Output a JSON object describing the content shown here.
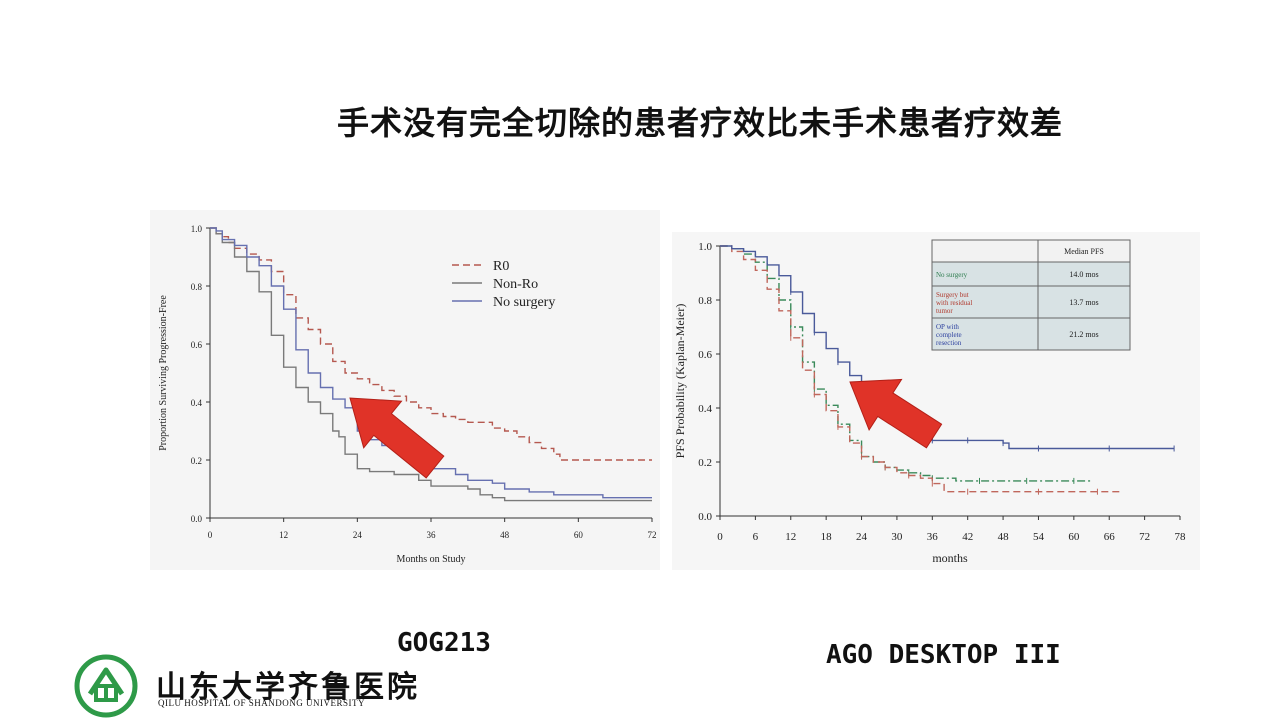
{
  "slide": {
    "title": "手术没有完全切除的患者疗效比未手术患者疗效差",
    "caption_left": "GOG213",
    "caption_right": "AGO DESKTOP III"
  },
  "logo": {
    "name_cn": "山东大学齐鲁医院",
    "name_en": "QILU HOSPITAL OF SHANDONG UNIVERSITY",
    "color": "#2e9a48"
  },
  "chart_data": [
    {
      "type": "line",
      "xlabel": "Months on Study",
      "ylabel": "Proportion Surviving Progression-Free",
      "xlim": [
        0,
        72
      ],
      "ylim": [
        0,
        1.0
      ],
      "xticks": [
        0,
        12,
        24,
        36,
        48,
        60,
        72
      ],
      "yticks": [
        0.0,
        0.2,
        0.4,
        0.6,
        0.8,
        1.0
      ],
      "xtick_labels": [
        "0",
        "12",
        "24",
        "36",
        "48",
        "60",
        "72"
      ],
      "ytick_labels": [
        "0.0",
        "0.2",
        "0.4",
        "0.6",
        "0.8",
        "1.0"
      ],
      "legend_position": "top-right",
      "grid": false,
      "series": [
        {
          "name": "R0",
          "color": "#b5584f",
          "dash": "dashed",
          "x": [
            0,
            1,
            2,
            3,
            4,
            6,
            8,
            10,
            12,
            14,
            16,
            18,
            20,
            22,
            24,
            26,
            28,
            30,
            32,
            34,
            36,
            38,
            40,
            42,
            44,
            46,
            48,
            50,
            52,
            54,
            56,
            57,
            60,
            64,
            68,
            72
          ],
          "y": [
            1.0,
            0.98,
            0.97,
            0.95,
            0.93,
            0.91,
            0.89,
            0.85,
            0.77,
            0.69,
            0.65,
            0.6,
            0.54,
            0.5,
            0.48,
            0.46,
            0.44,
            0.42,
            0.4,
            0.38,
            0.36,
            0.35,
            0.34,
            0.33,
            0.33,
            0.31,
            0.3,
            0.28,
            0.26,
            0.24,
            0.22,
            0.2,
            0.2,
            0.2,
            0.2,
            0.2
          ]
        },
        {
          "name": "Non-Ro",
          "color": "#7a7a7a",
          "dash": "solid",
          "x": [
            0,
            1,
            2,
            4,
            6,
            8,
            10,
            12,
            14,
            16,
            18,
            20,
            21,
            22,
            24,
            26,
            30,
            34,
            36,
            40,
            42,
            44,
            46,
            48,
            52,
            56,
            60,
            64,
            68,
            72
          ],
          "y": [
            1.0,
            0.98,
            0.95,
            0.9,
            0.85,
            0.78,
            0.63,
            0.52,
            0.45,
            0.4,
            0.36,
            0.3,
            0.28,
            0.22,
            0.17,
            0.16,
            0.15,
            0.13,
            0.11,
            0.11,
            0.1,
            0.08,
            0.07,
            0.06,
            0.06,
            0.06,
            0.06,
            0.06,
            0.06,
            0.06
          ]
        },
        {
          "name": "No surgery",
          "color": "#6670b0",
          "dash": "solid",
          "x": [
            0,
            1,
            2,
            4,
            6,
            8,
            10,
            12,
            14,
            16,
            18,
            20,
            22,
            24,
            26,
            28,
            30,
            34,
            36,
            40,
            42,
            46,
            48,
            52,
            56,
            60,
            64,
            68,
            72
          ],
          "y": [
            1.0,
            0.99,
            0.96,
            0.94,
            0.9,
            0.87,
            0.8,
            0.72,
            0.58,
            0.5,
            0.45,
            0.41,
            0.38,
            0.3,
            0.27,
            0.25,
            0.24,
            0.21,
            0.17,
            0.15,
            0.13,
            0.12,
            0.1,
            0.09,
            0.08,
            0.08,
            0.07,
            0.07,
            0.07
          ]
        }
      ]
    },
    {
      "type": "line",
      "xlabel": "months",
      "ylabel": "PFS Probability (Kaplan-Meier)",
      "xlim": [
        0,
        78
      ],
      "ylim": [
        0,
        1.0
      ],
      "xticks": [
        0,
        6,
        12,
        18,
        24,
        30,
        36,
        42,
        48,
        54,
        60,
        66,
        72,
        78
      ],
      "yticks": [
        0.0,
        0.2,
        0.4,
        0.6,
        0.8,
        1.0
      ],
      "xtick_labels": [
        "0",
        "6",
        "12",
        "18",
        "24",
        "30",
        "36",
        "42",
        "48",
        "54",
        "60",
        "66",
        "72",
        "78"
      ],
      "ytick_labels": [
        "0.0",
        "0.2",
        "0.4",
        "0.6",
        "0.8",
        "1.0"
      ],
      "grid": false,
      "table": {
        "header": [
          "",
          "Median PFS"
        ],
        "rows": [
          {
            "label": "No surgery",
            "value": "14.0 mos",
            "color": "#2e7d4f"
          },
          {
            "label": "Surgery but with residual tumor",
            "value": "13.7 mos",
            "color": "#b03a2e"
          },
          {
            "label": "OP with complete resection",
            "value": "21.2 mos",
            "color": "#2b3f9e"
          }
        ]
      },
      "series": [
        {
          "name": "No surgery",
          "color": "#3a8a5a",
          "dash": "dashdot",
          "x": [
            0,
            2,
            4,
            6,
            8,
            10,
            12,
            14,
            16,
            18,
            20,
            22,
            24,
            26,
            28,
            30,
            32,
            34,
            36,
            40,
            44,
            48,
            52,
            56,
            60,
            63
          ],
          "y": [
            1.0,
            0.99,
            0.97,
            0.94,
            0.88,
            0.8,
            0.7,
            0.57,
            0.47,
            0.41,
            0.34,
            0.28,
            0.22,
            0.2,
            0.18,
            0.17,
            0.16,
            0.15,
            0.14,
            0.13,
            0.13,
            0.13,
            0.13,
            0.13,
            0.13,
            0.13
          ]
        },
        {
          "name": "Surgery but with residual tumor",
          "color": "#c0675c",
          "dash": "dashed",
          "x": [
            0,
            2,
            4,
            6,
            8,
            10,
            12,
            14,
            16,
            18,
            20,
            22,
            24,
            26,
            28,
            30,
            32,
            34,
            36,
            38,
            42,
            48,
            54,
            60,
            64,
            68
          ],
          "y": [
            1.0,
            0.98,
            0.95,
            0.91,
            0.84,
            0.76,
            0.66,
            0.54,
            0.45,
            0.39,
            0.33,
            0.27,
            0.22,
            0.2,
            0.18,
            0.16,
            0.15,
            0.14,
            0.12,
            0.09,
            0.09,
            0.09,
            0.09,
            0.09,
            0.09,
            0.09
          ]
        },
        {
          "name": "OP with complete resection",
          "color": "#4a5a9a",
          "dash": "solid",
          "x": [
            0,
            2,
            4,
            6,
            8,
            10,
            12,
            14,
            16,
            18,
            20,
            22,
            24,
            26,
            28,
            30,
            32,
            34,
            36,
            38,
            42,
            46,
            48,
            49,
            54,
            60,
            66,
            72,
            77
          ],
          "y": [
            1.0,
            0.99,
            0.98,
            0.96,
            0.93,
            0.89,
            0.83,
            0.75,
            0.68,
            0.62,
            0.57,
            0.52,
            0.47,
            0.42,
            0.38,
            0.35,
            0.33,
            0.3,
            0.28,
            0.28,
            0.28,
            0.28,
            0.27,
            0.25,
            0.25,
            0.25,
            0.25,
            0.25,
            0.25
          ]
        }
      ]
    }
  ]
}
